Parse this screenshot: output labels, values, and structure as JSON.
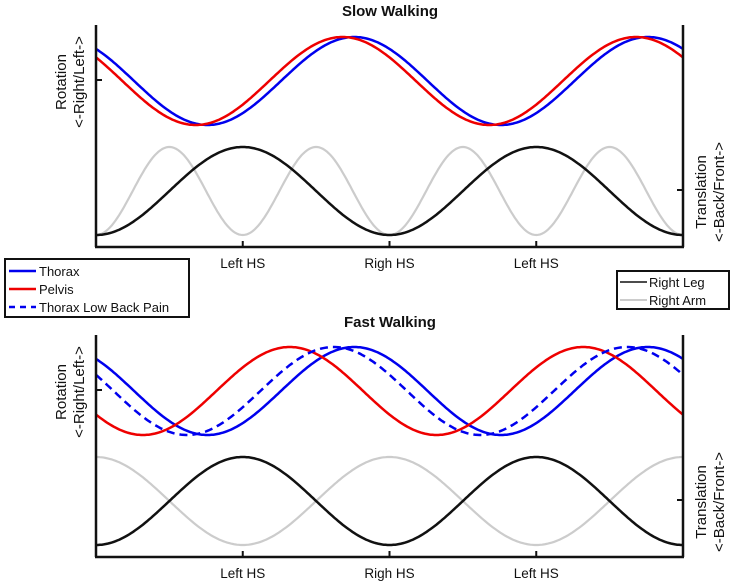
{
  "chart_data": [
    {
      "type": "line",
      "title": "Slow Walking",
      "xlabel": "",
      "x_range": [
        0,
        2
      ],
      "x_unit": "gait cycles (Left HS to Left HS)",
      "xticks": [
        {
          "x": 0.5,
          "label": "Left HS"
        },
        {
          "x": 1.0,
          "label": "Righ HS"
        },
        {
          "x": 1.5,
          "label": "Left HS"
        }
      ],
      "ylabel_left": [
        "Rotation",
        "<-Right/Left->"
      ],
      "ylabel_right": [
        "Translation",
        "<-Back/Front->"
      ],
      "grid": false,
      "legend": "none",
      "rotation_series": [
        {
          "name": "Thorax",
          "color": "#0000ee",
          "style": "solid",
          "amplitude": 1.0,
          "phase_peak_cycle": 0.88
        },
        {
          "name": "Pelvis",
          "color": "#ee0000",
          "style": "solid",
          "amplitude": 1.0,
          "phase_peak_cycle": 0.84
        }
      ],
      "translation_series": [
        {
          "name": "Right Leg",
          "color": "#111111",
          "style": "solid",
          "cycles_per_gait": 1,
          "phase_peak_cycle": 0.5
        },
        {
          "name": "Right Arm",
          "color": "#cccccc",
          "style": "solid",
          "cycles_per_gait": 2,
          "phase_peak_cycle": 0.25
        }
      ]
    },
    {
      "type": "line",
      "title": "Fast Walking",
      "xlabel": "",
      "x_range": [
        0,
        2
      ],
      "x_unit": "gait cycles (Left HS to Left HS)",
      "xticks": [
        {
          "x": 0.5,
          "label": "Left HS"
        },
        {
          "x": 1.0,
          "label": "Righ HS"
        },
        {
          "x": 1.5,
          "label": "Left HS"
        }
      ],
      "ylabel_left": [
        "Rotation",
        "<-Right/Left->"
      ],
      "ylabel_right": [
        "Translation",
        "<-Back/Front->"
      ],
      "grid": false,
      "legend": "none",
      "rotation_series": [
        {
          "name": "Thorax",
          "color": "#0000ee",
          "style": "solid",
          "amplitude": 1.0,
          "phase_peak_cycle": 0.88
        },
        {
          "name": "Pelvis",
          "color": "#ee0000",
          "style": "solid",
          "amplitude": 1.0,
          "phase_peak_cycle": 0.66
        },
        {
          "name": "Thorax Low Back Pain",
          "color": "#0000ee",
          "style": "dashed",
          "amplitude": 1.0,
          "phase_peak_cycle": 0.81
        }
      ],
      "translation_series": [
        {
          "name": "Right Leg",
          "color": "#111111",
          "style": "solid",
          "cycles_per_gait": 1,
          "phase_peak_cycle": 0.5
        },
        {
          "name": "Right Arm",
          "color": "#cccccc",
          "style": "solid",
          "cycles_per_gait": 1,
          "phase_peak_cycle": 0.0
        }
      ]
    }
  ],
  "legends": {
    "rotation": [
      {
        "label": "Thorax",
        "color": "#0000ee",
        "style": "solid"
      },
      {
        "label": "Pelvis",
        "color": "#ee0000",
        "style": "solid"
      },
      {
        "label": "Thorax Low Back Pain",
        "color": "#0000ee",
        "style": "dashed"
      }
    ],
    "translation": [
      {
        "label": "Right Leg",
        "color": "#111111",
        "style": "solid"
      },
      {
        "label": "Right Arm",
        "color": "#cccccc",
        "style": "solid"
      }
    ]
  }
}
